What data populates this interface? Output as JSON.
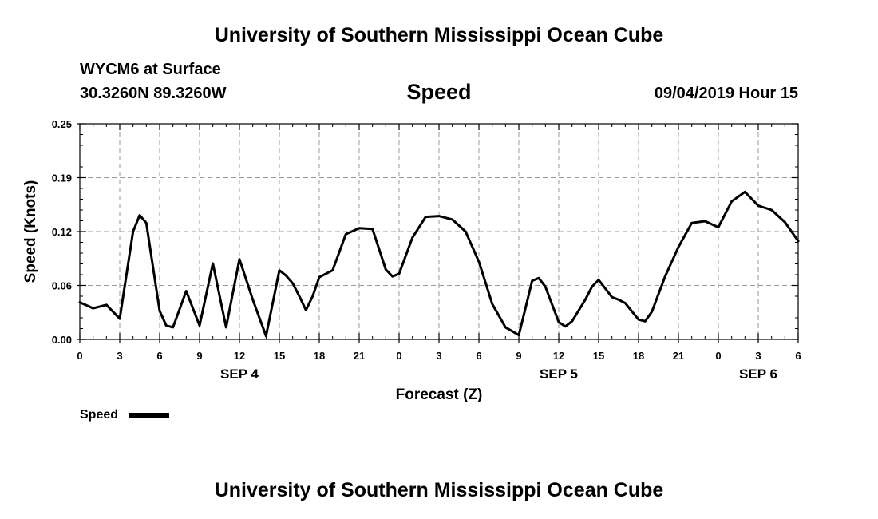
{
  "header": {
    "title": "University of Southern Mississippi Ocean Cube",
    "station": "WYCM6 at Surface",
    "coords": "30.3260N 89.3260W",
    "variable": "Speed",
    "timestamp": "09/04/2019 Hour 15"
  },
  "footer": {
    "title": "University of Southern Mississippi Ocean Cube"
  },
  "chart_data": {
    "type": "line",
    "title": "Speed",
    "xlabel": "Forecast (Z)",
    "ylabel": "Speed (Knots)",
    "ylim": [
      0,
      0.25
    ],
    "xlim": [
      0,
      54
    ],
    "y_ticks": [
      "0.00",
      "0.06",
      "0.12",
      "0.19",
      "0.25"
    ],
    "y_tick_values": [
      0,
      0.0625,
      0.125,
      0.1875,
      0.25
    ],
    "x_tick_hours": [
      0,
      3,
      6,
      9,
      12,
      15,
      18,
      21,
      24,
      27,
      30,
      33,
      36,
      39,
      42,
      45,
      48,
      51,
      54
    ],
    "x_tick_labels": [
      "0",
      "3",
      "6",
      "9",
      "12",
      "15",
      "18",
      "21",
      "0",
      "3",
      "6",
      "9",
      "12",
      "15",
      "18",
      "21",
      "0",
      "3",
      "6"
    ],
    "date_labels": [
      {
        "hour": 12,
        "label": "SEP 4"
      },
      {
        "hour": 36,
        "label": "SEP 5"
      },
      {
        "hour": 51,
        "label": "SEP 6"
      }
    ],
    "grid": true,
    "legend": {
      "label": "Speed",
      "position": "bottom-left"
    },
    "color": "#000000",
    "series": [
      {
        "name": "Speed",
        "x": [
          0,
          1,
          2,
          3,
          4,
          4.5,
          5,
          6,
          6.5,
          7,
          8,
          9,
          10,
          11,
          12,
          13,
          14,
          15,
          15.5,
          16,
          16.5,
          17,
          17.5,
          18,
          19,
          20,
          21,
          22,
          23,
          23.5,
          24,
          25,
          26,
          27,
          28,
          29,
          30,
          31,
          32,
          33,
          33.5,
          34,
          34.5,
          35,
          36,
          36.5,
          37,
          38,
          38.5,
          39,
          40,
          40.5,
          41,
          42,
          42.5,
          43,
          44,
          45,
          46,
          47,
          48,
          49,
          50,
          51,
          52,
          53,
          54
        ],
        "values": [
          0.043,
          0.036,
          0.04,
          0.024,
          0.125,
          0.144,
          0.135,
          0.033,
          0.016,
          0.014,
          0.056,
          0.016,
          0.088,
          0.014,
          0.093,
          0.046,
          0.004,
          0.08,
          0.074,
          0.065,
          0.05,
          0.034,
          0.05,
          0.072,
          0.08,
          0.122,
          0.129,
          0.128,
          0.081,
          0.073,
          0.076,
          0.118,
          0.142,
          0.143,
          0.139,
          0.125,
          0.09,
          0.041,
          0.014,
          0.005,
          0.036,
          0.068,
          0.071,
          0.061,
          0.02,
          0.015,
          0.021,
          0.046,
          0.061,
          0.069,
          0.049,
          0.046,
          0.042,
          0.023,
          0.021,
          0.032,
          0.073,
          0.107,
          0.135,
          0.137,
          0.13,
          0.16,
          0.171,
          0.155,
          0.15,
          0.136,
          0.114
        ]
      }
    ]
  }
}
